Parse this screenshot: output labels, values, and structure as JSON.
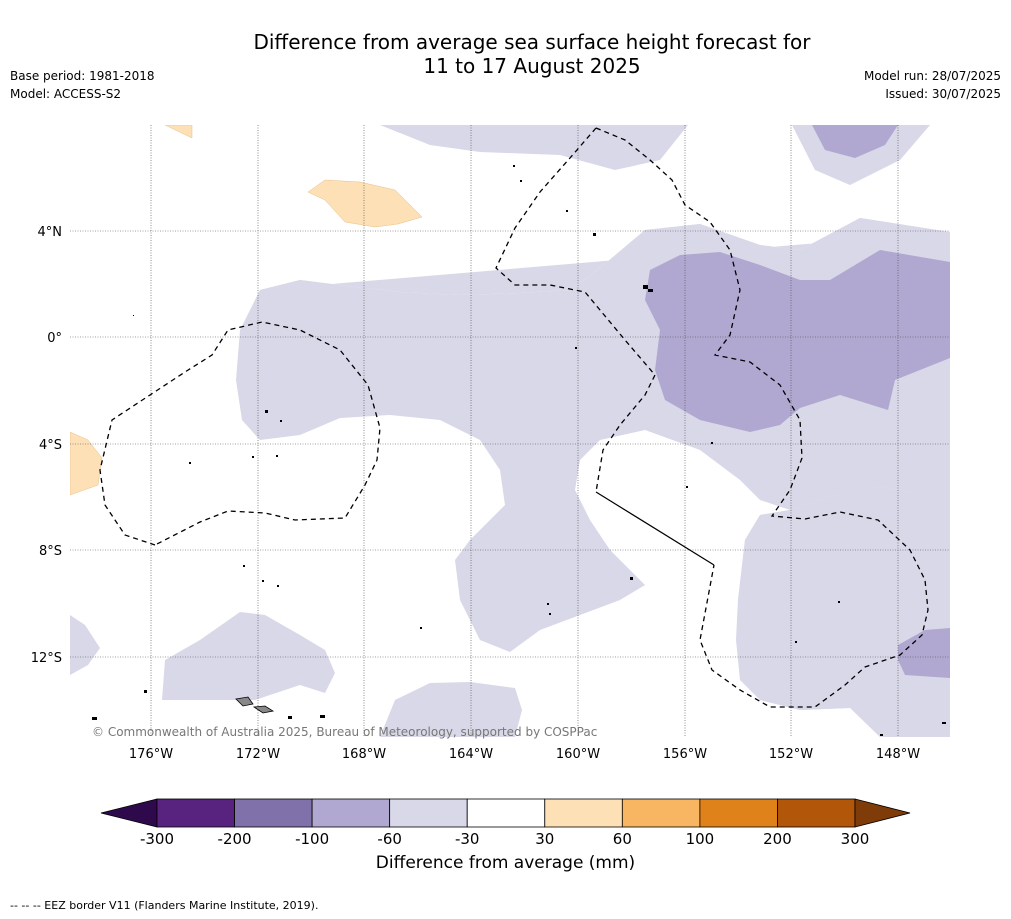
{
  "title_line1": "Difference from average sea surface height forecast for",
  "title_line2": "11 to 17 August 2025",
  "base_period": "Base period: 1981-2018",
  "model": "Model: ACCESS-S2",
  "model_run": "Model run: 28/07/2025",
  "issued": "Issued: 30/07/2025",
  "lat_labels": [
    "4°N",
    "0°",
    "4°S",
    "8°S",
    "12°S"
  ],
  "lon_labels": [
    "176°W",
    "172°W",
    "168°W",
    "164°W",
    "160°W",
    "156°W",
    "152°W",
    "148°W"
  ],
  "copyright": "© Commonwealth of Australia 2025, Bureau of Meteorology, supported by COSPPac",
  "colorbar": {
    "caption": "Difference from average (mm)",
    "ticks": [
      "-300",
      "-200",
      "-100",
      "-60",
      "-30",
      "30",
      "60",
      "100",
      "200",
      "300"
    ],
    "colors": [
      "#2e0a4d",
      "#57237f",
      "#8071ab",
      "#b0a8d0",
      "#d8d8e8",
      "#ffffff",
      "#fde0b6",
      "#f8b662",
      "#e0821a",
      "#b25709",
      "#7f3b08"
    ]
  },
  "fill_colors": {
    "light_purple": "#d8d8e8",
    "mid_purple": "#b0a8d0",
    "light_orange": "#fde0b6"
  },
  "footer": "--  --  -- EEZ border V11 (Flanders Marine Institute, 2019)."
}
